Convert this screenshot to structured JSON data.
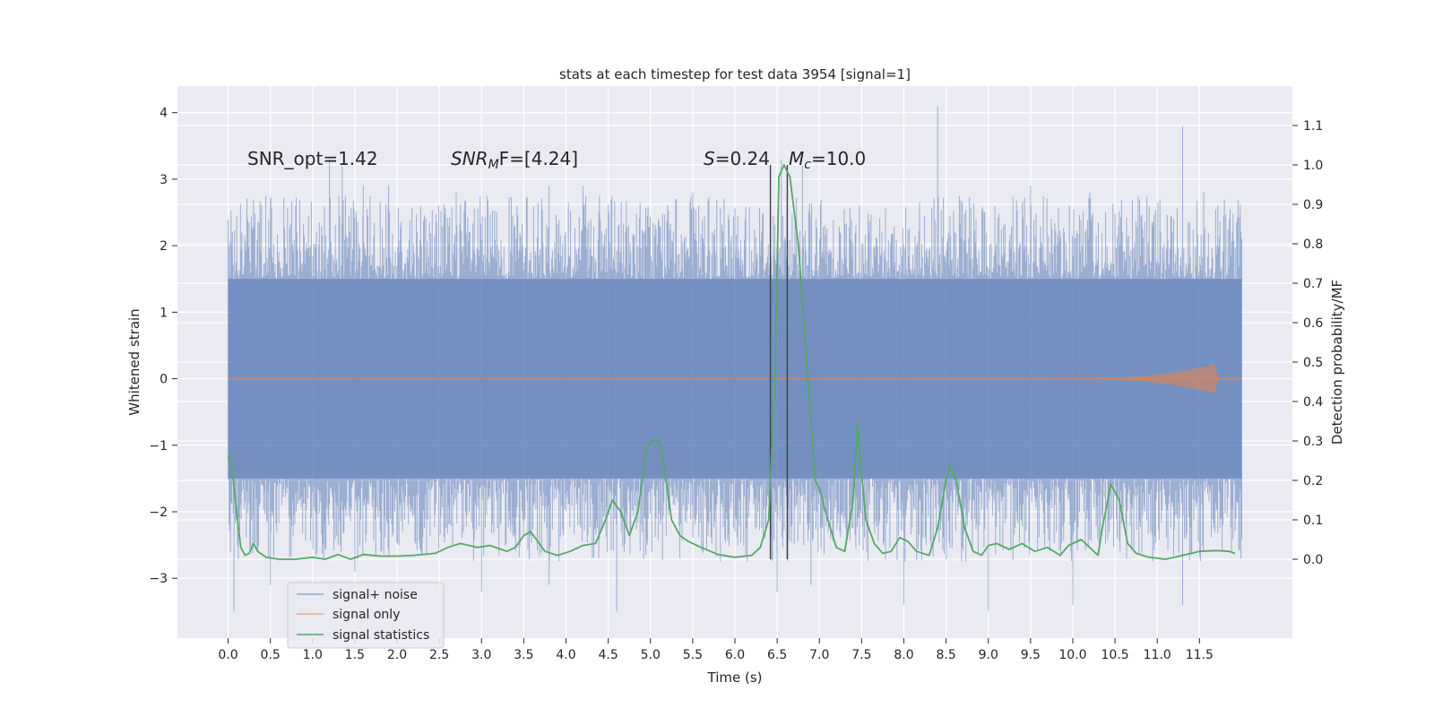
{
  "chart_data": {
    "type": "line",
    "title": "stats at each timestep for test data 3954 [signal=1]",
    "xlabel": "Time (s)",
    "ylabel": "Whitened strain",
    "ylabel_right": "Detection probability/MF",
    "xlim": [
      -0.6,
      12.6
    ],
    "ylim": [
      -3.9,
      4.4
    ],
    "ylim_right": [
      -0.2,
      1.2
    ],
    "x_ticks": [
      0.0,
      0.5,
      1.0,
      1.5,
      2.0,
      2.5,
      3.0,
      3.5,
      4.0,
      4.5,
      5.0,
      5.5,
      6.0,
      6.5,
      7.0,
      7.5,
      8.0,
      8.5,
      9.0,
      9.5,
      10.0,
      10.5,
      11.0,
      11.5
    ],
    "x_tick_labels": [
      "0.0",
      "0.5",
      "1.0",
      "1.5",
      "2.0",
      "2.5",
      "3.0",
      "3.5",
      "4.0",
      "4.5",
      "5.0",
      "5.5",
      "6.0",
      "6.5",
      "7.0",
      "7.5",
      "8.0",
      "8.5",
      "9.0",
      "9.5",
      "10.0",
      "10.5",
      "11.0",
      "11.5"
    ],
    "y_ticks": [
      -3,
      -2,
      -1,
      0,
      1,
      2,
      3,
      4
    ],
    "y_tick_labels": [
      "−3",
      "−2",
      "−1",
      "0",
      "1",
      "2",
      "3",
      "4"
    ],
    "y_ticks_right": [
      0.0,
      0.1,
      0.2,
      0.3,
      0.4,
      0.5,
      0.6,
      0.7,
      0.8,
      0.9,
      1.0,
      1.1
    ],
    "y_tick_labels_right": [
      "0.0",
      "0.1",
      "0.2",
      "0.3",
      "0.4",
      "0.5",
      "0.6",
      "0.7",
      "0.8",
      "0.9",
      "1.0",
      "1.1"
    ],
    "grid": true,
    "legend_position": "lower-left",
    "annotations": {
      "snr_opt": "SNR_opt=1.42",
      "snr_mf_main": "SNR",
      "snr_mf_sub": "M",
      "snr_mf_rest": "F=[4.24]",
      "s_var": "S",
      "s_val": "=0.24",
      "mc_var": "M",
      "mc_sub": "c",
      "mc_val": "=10.0"
    },
    "vertical_lines_x": [
      6.42,
      6.62
    ],
    "series": [
      {
        "name": "signal+ noise",
        "color": "#4c72b0",
        "axis": "left",
        "x_range": [
          0.0,
          12.0
        ],
        "envelope_high_y": 1.5,
        "envelope_low_y": -1.5,
        "spike_peaks": [
          [
            0.05,
            2.2
          ],
          [
            0.3,
            2.7
          ],
          [
            0.5,
            2.7
          ],
          [
            0.8,
            2.6
          ],
          [
            1.2,
            3.3
          ],
          [
            1.35,
            3.2
          ],
          [
            1.6,
            2.9
          ],
          [
            1.9,
            2.9
          ],
          [
            2.7,
            2.8
          ],
          [
            3.8,
            2.9
          ],
          [
            4.2,
            2.9
          ],
          [
            5.5,
            2.8
          ],
          [
            6.55,
            3.3
          ],
          [
            6.8,
            3.2
          ],
          [
            8.4,
            4.1
          ],
          [
            9.5,
            2.9
          ],
          [
            10.2,
            2.8
          ],
          [
            11.3,
            3.8
          ],
          [
            11.55,
            2.8
          ]
        ],
        "spike_troughs": [
          [
            0.07,
            -3.5
          ],
          [
            0.5,
            -3.1
          ],
          [
            1.5,
            -2.9
          ],
          [
            3.0,
            -3.2
          ],
          [
            3.8,
            -3.1
          ],
          [
            4.6,
            -3.5
          ],
          [
            6.5,
            -3.2
          ],
          [
            6.9,
            -3.1
          ],
          [
            8.0,
            -3.4
          ],
          [
            8.5,
            -2.5
          ],
          [
            9.0,
            -3.5
          ],
          [
            10.0,
            -3.4
          ],
          [
            11.3,
            -3.4
          ]
        ]
      },
      {
        "name": "signal only",
        "color": "#dd8452",
        "axis": "left",
        "x_range": [
          0.0,
          12.0
        ],
        "chirp_end_x": 11.67,
        "chirp_peak_amplitude": 0.22
      },
      {
        "name": "signal statistics",
        "color": "#55a868",
        "axis": "right",
        "points": [
          [
            0.0,
            0.26
          ],
          [
            0.05,
            0.22
          ],
          [
            0.1,
            0.12
          ],
          [
            0.15,
            0.03
          ],
          [
            0.2,
            0.01
          ],
          [
            0.25,
            0.015
          ],
          [
            0.3,
            0.04
          ],
          [
            0.35,
            0.02
          ],
          [
            0.45,
            0.005
          ],
          [
            0.6,
            0.0
          ],
          [
            0.8,
            0.0
          ],
          [
            1.0,
            0.005
          ],
          [
            1.15,
            0.0
          ],
          [
            1.3,
            0.012
          ],
          [
            1.45,
            0.0
          ],
          [
            1.6,
            0.012
          ],
          [
            1.8,
            0.008
          ],
          [
            2.0,
            0.008
          ],
          [
            2.2,
            0.01
          ],
          [
            2.45,
            0.015
          ],
          [
            2.6,
            0.03
          ],
          [
            2.75,
            0.04
          ],
          [
            2.95,
            0.03
          ],
          [
            3.1,
            0.035
          ],
          [
            3.3,
            0.02
          ],
          [
            3.4,
            0.03
          ],
          [
            3.5,
            0.06
          ],
          [
            3.58,
            0.07
          ],
          [
            3.65,
            0.05
          ],
          [
            3.75,
            0.02
          ],
          [
            3.9,
            0.01
          ],
          [
            4.05,
            0.02
          ],
          [
            4.2,
            0.035
          ],
          [
            4.35,
            0.04
          ],
          [
            4.45,
            0.09
          ],
          [
            4.55,
            0.15
          ],
          [
            4.65,
            0.12
          ],
          [
            4.75,
            0.06
          ],
          [
            4.85,
            0.12
          ],
          [
            4.95,
            0.27
          ],
          [
            5.0,
            0.3
          ],
          [
            5.1,
            0.3
          ],
          [
            5.15,
            0.25
          ],
          [
            5.25,
            0.1
          ],
          [
            5.35,
            0.06
          ],
          [
            5.45,
            0.045
          ],
          [
            5.6,
            0.03
          ],
          [
            5.8,
            0.012
          ],
          [
            6.0,
            0.005
          ],
          [
            6.2,
            0.01
          ],
          [
            6.3,
            0.03
          ],
          [
            6.4,
            0.1
          ],
          [
            6.48,
            0.5
          ],
          [
            6.52,
            0.97
          ],
          [
            6.58,
            1.0
          ],
          [
            6.65,
            0.97
          ],
          [
            6.75,
            0.8
          ],
          [
            6.85,
            0.5
          ],
          [
            6.95,
            0.2
          ],
          [
            7.0,
            0.18
          ],
          [
            7.1,
            0.1
          ],
          [
            7.2,
            0.03
          ],
          [
            7.3,
            0.02
          ],
          [
            7.4,
            0.15
          ],
          [
            7.45,
            0.34
          ],
          [
            7.5,
            0.22
          ],
          [
            7.55,
            0.1
          ],
          [
            7.65,
            0.04
          ],
          [
            7.75,
            0.015
          ],
          [
            7.85,
            0.02
          ],
          [
            7.95,
            0.055
          ],
          [
            8.05,
            0.045
          ],
          [
            8.15,
            0.02
          ],
          [
            8.3,
            0.01
          ],
          [
            8.4,
            0.08
          ],
          [
            8.5,
            0.2
          ],
          [
            8.55,
            0.24
          ],
          [
            8.62,
            0.2
          ],
          [
            8.72,
            0.08
          ],
          [
            8.82,
            0.02
          ],
          [
            8.92,
            0.01
          ],
          [
            9.0,
            0.035
          ],
          [
            9.1,
            0.04
          ],
          [
            9.25,
            0.025
          ],
          [
            9.4,
            0.04
          ],
          [
            9.55,
            0.02
          ],
          [
            9.7,
            0.03
          ],
          [
            9.85,
            0.01
          ],
          [
            9.95,
            0.035
          ],
          [
            10.1,
            0.05
          ],
          [
            10.2,
            0.03
          ],
          [
            10.3,
            0.01
          ],
          [
            10.35,
            0.08
          ],
          [
            10.45,
            0.19
          ],
          [
            10.55,
            0.15
          ],
          [
            10.65,
            0.04
          ],
          [
            10.75,
            0.015
          ],
          [
            10.9,
            0.005
          ],
          [
            11.1,
            0.0
          ],
          [
            11.3,
            0.01
          ],
          [
            11.5,
            0.02
          ],
          [
            11.7,
            0.022
          ],
          [
            11.85,
            0.02
          ],
          [
            11.92,
            0.015
          ]
        ]
      }
    ]
  }
}
